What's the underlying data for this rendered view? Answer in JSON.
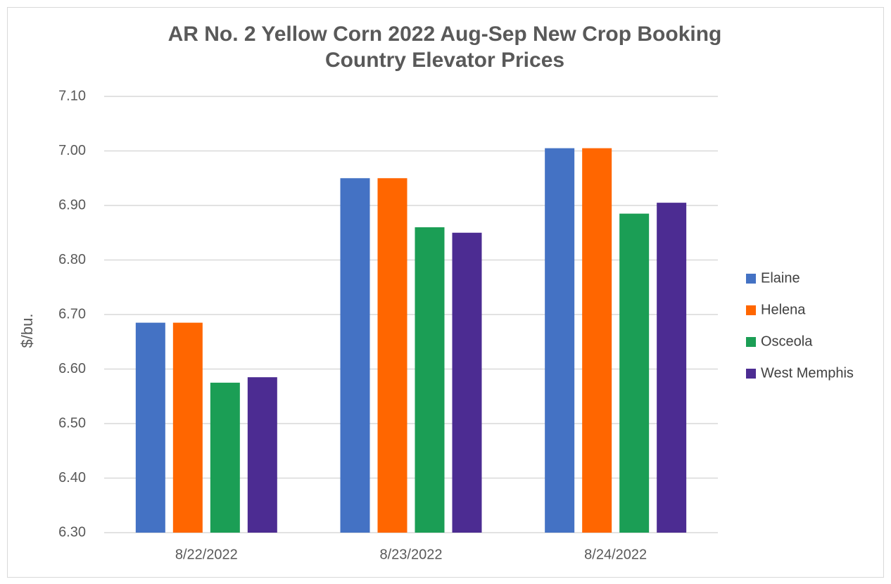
{
  "chart_data": {
    "type": "bar",
    "title": [
      "AR No. 2 Yellow Corn 2022 Aug-Sep New Crop Booking",
      "Country Elevator Prices"
    ],
    "y_label": "$/bu.",
    "categories": [
      "8/22/2022",
      "8/23/2022",
      "8/24/2022"
    ],
    "series": [
      {
        "name": "Elaine",
        "color": "#4472c4",
        "values": [
          6.685,
          6.95,
          7.005
        ]
      },
      {
        "name": "Helena",
        "color": "#ff6600",
        "values": [
          6.685,
          6.95,
          7.005
        ]
      },
      {
        "name": "Osceola",
        "color": "#1b9e55",
        "values": [
          6.575,
          6.86,
          6.885
        ]
      },
      {
        "name": "West Memphis",
        "color": "#4c2c92",
        "values": [
          6.585,
          6.85,
          6.905
        ]
      }
    ],
    "ylim": [
      6.3,
      7.1
    ],
    "yticks": [
      {
        "value": 6.3,
        "label": "6.30"
      },
      {
        "value": 6.4,
        "label": "6.40"
      },
      {
        "value": 6.5,
        "label": "6.50"
      },
      {
        "value": 6.6,
        "label": "6.60"
      },
      {
        "value": 6.7,
        "label": "6.70"
      },
      {
        "value": 6.8,
        "label": "6.80"
      },
      {
        "value": 6.9,
        "label": "6.90"
      },
      {
        "value": 7.0,
        "label": "7.00"
      },
      {
        "value": 7.1,
        "label": "7.10"
      }
    ],
    "grid": true,
    "legend": "right"
  }
}
